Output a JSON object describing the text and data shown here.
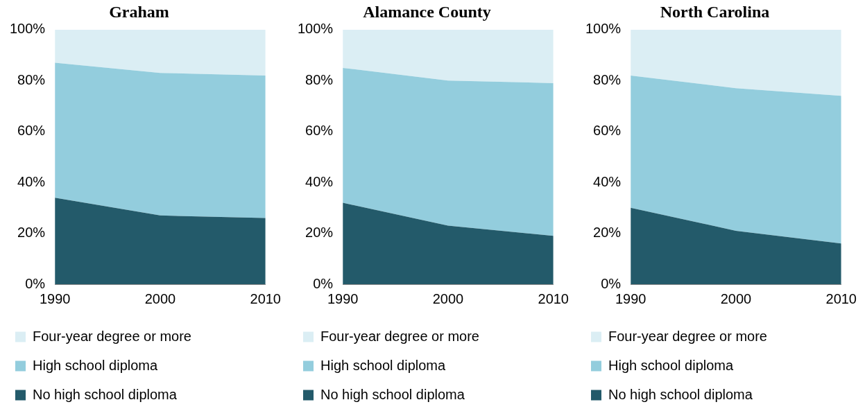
{
  "chart_data": [
    {
      "type": "area",
      "title": "Graham",
      "stacked": true,
      "categories": [
        "1990",
        "2000",
        "2010"
      ],
      "ylim": [
        0,
        100
      ],
      "yticks": [
        {
          "value": 0,
          "label": "0%"
        },
        {
          "value": 20,
          "label": "20%"
        },
        {
          "value": 40,
          "label": "40%"
        },
        {
          "value": 60,
          "label": "60%"
        },
        {
          "value": 80,
          "label": "80%"
        },
        {
          "value": 100,
          "label": "100%"
        }
      ],
      "grid": false,
      "legend": "bottom",
      "series": [
        {
          "name": "No high school diploma",
          "color": "#235a6a",
          "values": [
            34,
            27,
            26
          ]
        },
        {
          "name": "High school diploma",
          "color": "#93cddd",
          "values": [
            53,
            56,
            56
          ]
        },
        {
          "name": "Four-year degree or more",
          "color": "#dbeef4",
          "values": [
            13,
            17,
            18
          ]
        }
      ]
    },
    {
      "type": "area",
      "title": "Alamance County",
      "stacked": true,
      "categories": [
        "1990",
        "2000",
        "2010"
      ],
      "ylim": [
        0,
        100
      ],
      "yticks": [
        {
          "value": 0,
          "label": "0%"
        },
        {
          "value": 20,
          "label": "20%"
        },
        {
          "value": 40,
          "label": "40%"
        },
        {
          "value": 60,
          "label": "60%"
        },
        {
          "value": 80,
          "label": "80%"
        },
        {
          "value": 100,
          "label": "100%"
        }
      ],
      "grid": false,
      "legend": "bottom",
      "series": [
        {
          "name": "No high school diploma",
          "color": "#235a6a",
          "values": [
            32,
            23,
            19
          ]
        },
        {
          "name": "High school diploma",
          "color": "#93cddd",
          "values": [
            53,
            57,
            60
          ]
        },
        {
          "name": "Four-year degree or more",
          "color": "#dbeef4",
          "values": [
            15,
            20,
            21
          ]
        }
      ]
    },
    {
      "type": "area",
      "title": "North Carolina",
      "stacked": true,
      "categories": [
        "1990",
        "2000",
        "2010"
      ],
      "ylim": [
        0,
        100
      ],
      "yticks": [
        {
          "value": 0,
          "label": "0%"
        },
        {
          "value": 20,
          "label": "20%"
        },
        {
          "value": 40,
          "label": "40%"
        },
        {
          "value": 60,
          "label": "60%"
        },
        {
          "value": 80,
          "label": "80%"
        },
        {
          "value": 100,
          "label": "100%"
        }
      ],
      "grid": false,
      "legend": "bottom",
      "series": [
        {
          "name": "No high school diploma",
          "color": "#235a6a",
          "values": [
            30,
            21,
            16
          ]
        },
        {
          "name": "High school diploma",
          "color": "#93cddd",
          "values": [
            52,
            56,
            58
          ]
        },
        {
          "name": "Four-year degree or more",
          "color": "#dbeef4",
          "values": [
            18,
            23,
            26
          ]
        }
      ]
    }
  ]
}
